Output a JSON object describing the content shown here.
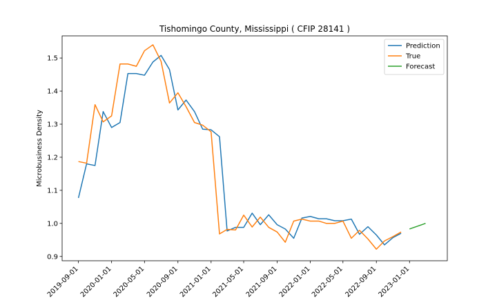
{
  "chart_data": {
    "type": "line",
    "title": "Tishomingo County, Mississippi ( CFIP 28141 )",
    "xlabel": "",
    "ylabel": "Microbusiness Density",
    "xlim": [
      "2019-07-03",
      "2023-05-20"
    ],
    "ylim": [
      0.887,
      1.567
    ],
    "x_ticks": [
      "2019-09-01",
      "2020-01-01",
      "2020-05-01",
      "2020-09-01",
      "2021-01-01",
      "2021-05-01",
      "2021-09-01",
      "2022-01-01",
      "2022-05-01",
      "2022-09-01",
      "2023-01-01"
    ],
    "y_ticks": [
      0.9,
      1.0,
      1.1,
      1.2,
      1.3,
      1.4,
      1.5
    ],
    "y_tick_labels": [
      "0.9",
      "1.0",
      "1.1",
      "1.2",
      "1.3",
      "1.4",
      "1.5"
    ],
    "grid": false,
    "legend_position": "top-right",
    "series": [
      {
        "name": "Prediction",
        "color": "#1f77b4",
        "x": [
          "2019-09-01",
          "2019-10-01",
          "2019-11-01",
          "2019-12-01",
          "2020-01-01",
          "2020-02-01",
          "2020-03-01",
          "2020-04-01",
          "2020-05-01",
          "2020-06-01",
          "2020-07-01",
          "2020-08-01",
          "2020-09-01",
          "2020-10-01",
          "2020-11-01",
          "2020-12-01",
          "2021-01-01",
          "2021-02-01",
          "2021-03-01",
          "2021-04-01",
          "2021-05-01",
          "2021-06-01",
          "2021-07-01",
          "2021-08-01",
          "2021-09-01",
          "2021-10-01",
          "2021-11-01",
          "2021-12-01",
          "2022-01-01",
          "2022-02-01",
          "2022-03-01",
          "2022-04-01",
          "2022-05-01",
          "2022-06-01",
          "2022-07-01",
          "2022-08-01",
          "2022-09-01",
          "2022-10-01",
          "2022-11-01",
          "2022-12-01"
        ],
        "values": [
          1.077,
          1.18,
          1.175,
          1.338,
          1.29,
          1.305,
          1.453,
          1.453,
          1.448,
          1.488,
          1.508,
          1.465,
          1.343,
          1.373,
          1.338,
          1.285,
          1.283,
          1.262,
          0.977,
          0.988,
          0.988,
          1.031,
          0.996,
          1.026,
          0.996,
          0.983,
          0.955,
          1.016,
          1.021,
          1.014,
          1.014,
          1.008,
          1.008,
          1.013,
          0.967,
          0.99,
          0.965,
          0.935,
          0.957,
          0.97
        ]
      },
      {
        "name": "True",
        "color": "#ff7f0e",
        "x": [
          "2019-09-01",
          "2019-10-01",
          "2019-11-01",
          "2019-12-01",
          "2020-01-01",
          "2020-02-01",
          "2020-03-01",
          "2020-04-01",
          "2020-05-01",
          "2020-06-01",
          "2020-07-01",
          "2020-08-01",
          "2020-09-01",
          "2020-10-01",
          "2020-11-01",
          "2020-12-01",
          "2021-01-01",
          "2021-02-01",
          "2021-03-01",
          "2021-04-01",
          "2021-05-01",
          "2021-06-01",
          "2021-07-01",
          "2021-08-01",
          "2021-09-01",
          "2021-10-01",
          "2021-11-01",
          "2021-12-01",
          "2022-01-01",
          "2022-02-01",
          "2022-03-01",
          "2022-04-01",
          "2022-05-01",
          "2022-06-01",
          "2022-07-01",
          "2022-08-01",
          "2022-09-01",
          "2022-10-01",
          "2022-11-01",
          "2022-12-01"
        ],
        "values": [
          1.187,
          1.182,
          1.359,
          1.307,
          1.325,
          1.482,
          1.482,
          1.475,
          1.522,
          1.54,
          1.49,
          1.364,
          1.395,
          1.353,
          1.305,
          1.297,
          1.277,
          0.968,
          0.982,
          0.98,
          1.025,
          0.989,
          1.019,
          0.988,
          0.974,
          0.943,
          1.007,
          1.013,
          1.007,
          1.007,
          1.0,
          1.0,
          1.007,
          0.955,
          0.979,
          0.953,
          0.922,
          0.947,
          0.96,
          0.974
        ]
      },
      {
        "name": "Forecast",
        "color": "#2ca02c",
        "x": [
          "2023-01-01",
          "2023-02-01",
          "2023-03-01"
        ],
        "values": [
          0.983,
          0.992,
          1.0
        ]
      }
    ]
  }
}
